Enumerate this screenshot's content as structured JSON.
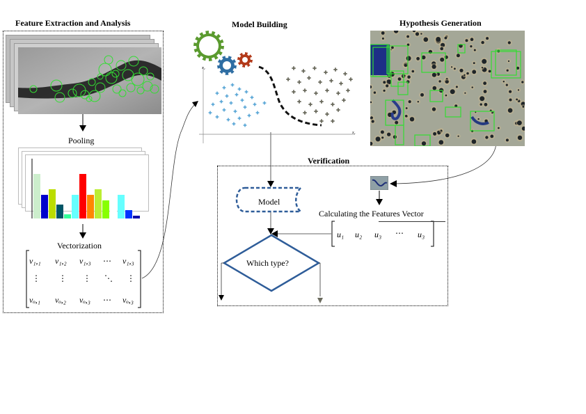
{
  "sections": {
    "feature": "Feature Extraction and Analysis",
    "model": "Model Building",
    "hypothesis": "Hypothesis Generation",
    "verification": "Verification"
  },
  "labels": {
    "pooling": "Pooling",
    "vectorization": "Vectorization",
    "model": "Model",
    "which_type": "Which type?",
    "calc_features": "Calculating the Features Vector"
  },
  "matrix": {
    "rows": [
      [
        "v₁,₁",
        "v₁,₂",
        "v₁,₃",
        "⋯",
        "v₁,₃"
      ],
      [
        "⋮",
        "⋮",
        "⋮",
        "⋱",
        "⋮"
      ],
      [
        "vₒ,₁",
        "vₒ,₂",
        "vₒ,₃",
        "⋯",
        "vₒ,₃"
      ]
    ]
  },
  "feature_vector": [
    "u₁",
    "u₂",
    "u₃",
    "⋯",
    "u₃"
  ],
  "axes": {
    "y": "x₂",
    "x": "x₁"
  },
  "colors": {
    "model_blue": "#2f5d99",
    "gear_green": "#5a9a2e",
    "gear_blue": "#2f6ea3",
    "gear_red": "#b33a1a",
    "detection_green": "#33dd33",
    "class_a": "#5aa6d6",
    "class_b": "#6b6b5e"
  },
  "histogram_colors": [
    "#cceecc",
    "#0000cc",
    "#bbdd00",
    "#005566",
    "#33ff99",
    "#66ffff",
    "#ff0000",
    "#ff8800",
    "#bbee33",
    "#88ff00",
    "#ffffff",
    "#66ffff",
    "#0033ff",
    "#0000aa"
  ],
  "icons": [
    "gear-icon-green",
    "gear-icon-blue",
    "gear-icon-red"
  ]
}
